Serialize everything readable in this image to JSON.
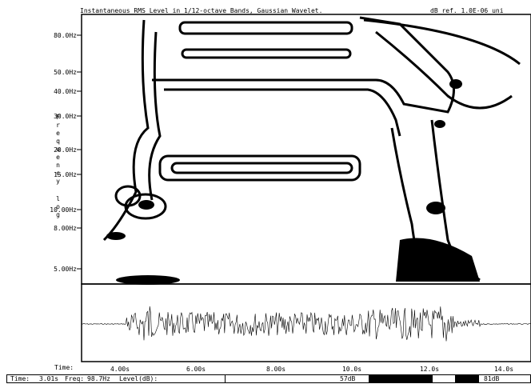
{
  "header": {
    "title": "Instantaneous RMS Level in 1/12-octave Bands, Gaussian Wavelet.",
    "reference": "dB ref. 1.0E-06 uni"
  },
  "y_axis": {
    "label_main": "Frequency",
    "label_scale": "log",
    "ticks": [
      "80.0Hz",
      "50.0Hz",
      "40.0Hz",
      "30.0Hz",
      "20.0Hz",
      "15.0Hz",
      "10.00Hz",
      "8.00Hz",
      "5.00Hz"
    ]
  },
  "x_axis": {
    "label": "Time:",
    "ticks": [
      "4.00s",
      "6.00s",
      "8.00s",
      "10.0s",
      "12.0s",
      "14.0s"
    ]
  },
  "status_bar": {
    "time_label": "Time:",
    "time": "3.01s",
    "freq_label": "Freq:",
    "freq": "98.7Hz",
    "level_label": "Level(dB):",
    "scale_low": "57dB",
    "scale_high": "81dB"
  }
}
